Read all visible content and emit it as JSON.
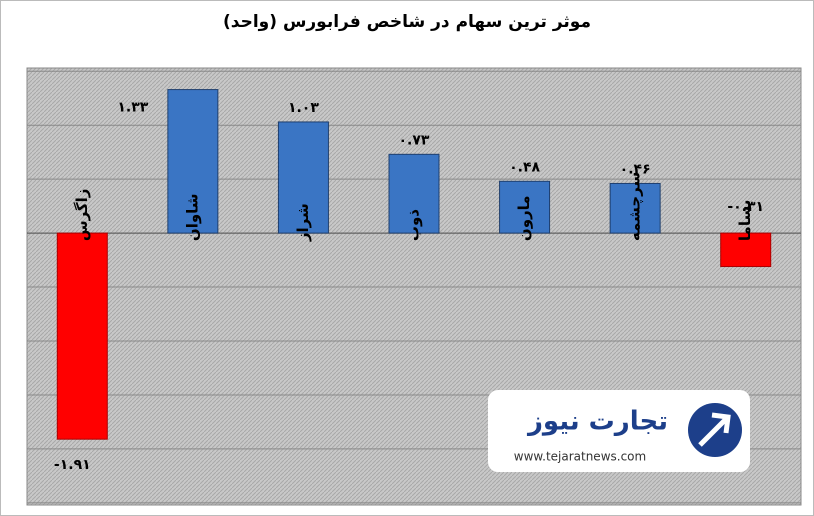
{
  "chart_data": {
    "type": "bar",
    "title": "موثر ترین سهام در شاخص فرابورس (واحد)",
    "categories": [
      "زاگرس",
      "شاوان",
      "شراز",
      "ذوب",
      "مارون",
      "سرچشمه",
      "بساما"
    ],
    "values": [
      -1.91,
      1.33,
      1.03,
      0.73,
      0.48,
      0.46,
      -0.31
    ],
    "value_labels": [
      "-۱.۹۱",
      "۱.۳۳",
      "۱.۰۳",
      "۰.۷۳",
      "۰.۴۸",
      "۰.۴۶",
      "-۰.۳۱"
    ],
    "positive_color": "#3a75c4",
    "negative_color": "#ff0000",
    "ylim": [
      -2.52,
      1.53
    ],
    "yticks": [
      -2.5,
      -2,
      -1.5,
      -1,
      -0.5,
      0,
      0.5,
      1,
      1.5
    ],
    "grid": true
  },
  "watermark": {
    "brand": "تجارت نیوز",
    "url": "www.tejaratnews.com"
  }
}
